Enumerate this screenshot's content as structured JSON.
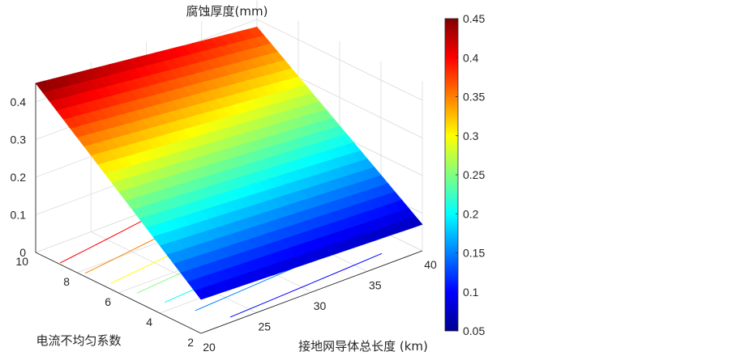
{
  "chart_data": {
    "type": "surface",
    "title": "",
    "zlabel": "腐蚀厚度(mm)",
    "xlabel": "接地网导体总长度 (km)",
    "ylabel": "电流不均匀系数",
    "x_ticks": [
      "20",
      "25",
      "30",
      "35",
      "40"
    ],
    "y_ticks": [
      "2",
      "4",
      "6",
      "8",
      "10"
    ],
    "z_ticks": [
      "0",
      "0.1",
      "0.2",
      "0.3",
      "0.4"
    ],
    "xlim": [
      20,
      40
    ],
    "ylim": [
      2,
      10
    ],
    "zlim": [
      0,
      0.45
    ],
    "x": [
      20,
      40
    ],
    "y": [
      2,
      10
    ],
    "z_corners": {
      "x20_y10": 0.45,
      "x40_y10": 0.38,
      "x20_y2": 0.09,
      "x40_y2": 0.07
    },
    "colorbar": {
      "colormap": "jet",
      "range": [
        0.05,
        0.45
      ],
      "ticks": [
        "0.05",
        "0.1",
        "0.15",
        "0.2",
        "0.25",
        "0.3",
        "0.35",
        "0.4",
        "0.45"
      ]
    },
    "grid": true
  }
}
